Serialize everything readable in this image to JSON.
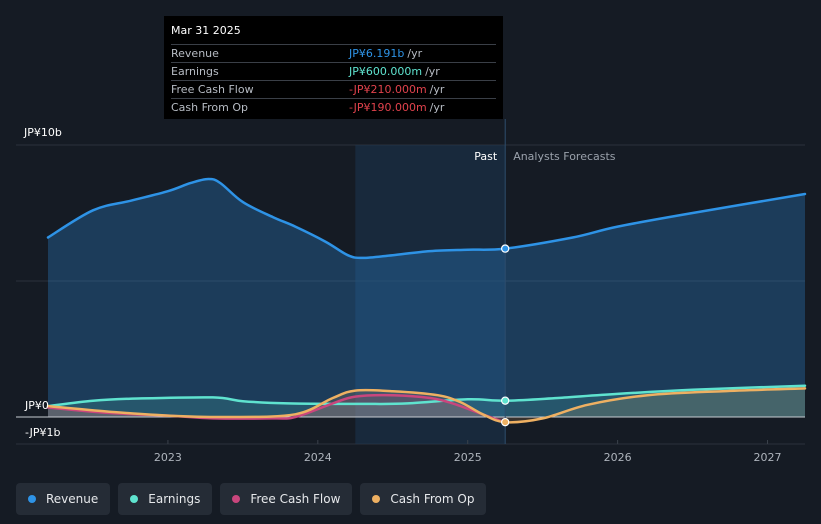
{
  "chart_data": {
    "type": "area",
    "y_axis": {
      "top_label": "JP¥10b",
      "zero_label": "JP¥0",
      "bottom_label": "-JP¥1b",
      "ylim_billion": [
        -1,
        10
      ]
    },
    "x_axis": {
      "ticks": [
        "2023",
        "2024",
        "2025",
        "2026",
        "2027"
      ],
      "xlim_year": [
        2022.2,
        2027.25
      ]
    },
    "regions": {
      "past_label": "Past",
      "forecast_label": "Analysts Forecasts",
      "past_region_start_year": 2024.25,
      "divider_year": 2025.25
    },
    "highlight_year": 2025.25,
    "series": [
      {
        "name": "Revenue",
        "color": "#2e93e6",
        "fill": true,
        "points": [
          [
            2022.2,
            6.6
          ],
          [
            2022.5,
            7.6
          ],
          [
            2022.75,
            7.95
          ],
          [
            2023,
            8.3
          ],
          [
            2023.15,
            8.6
          ],
          [
            2023.27,
            8.75
          ],
          [
            2023.35,
            8.6
          ],
          [
            2023.5,
            7.9
          ],
          [
            2023.7,
            7.35
          ],
          [
            2023.85,
            7.0
          ],
          [
            2024.05,
            6.45
          ],
          [
            2024.2,
            5.95
          ],
          [
            2024.3,
            5.85
          ],
          [
            2024.5,
            5.95
          ],
          [
            2024.75,
            6.1
          ],
          [
            2025,
            6.15
          ],
          [
            2025.25,
            6.191
          ],
          [
            2025.7,
            6.6
          ],
          [
            2026,
            7.0
          ],
          [
            2026.5,
            7.5
          ],
          [
            2027.25,
            8.2
          ]
        ]
      },
      {
        "name": "Earnings",
        "color": "#5fe3cf",
        "fill": false,
        "points": [
          [
            2022.2,
            0.4
          ],
          [
            2022.5,
            0.6
          ],
          [
            2022.8,
            0.68
          ],
          [
            2023.3,
            0.72
          ],
          [
            2023.5,
            0.58
          ],
          [
            2023.8,
            0.5
          ],
          [
            2024.3,
            0.48
          ],
          [
            2024.6,
            0.5
          ],
          [
            2025,
            0.65
          ],
          [
            2025.25,
            0.6
          ],
          [
            2025.6,
            0.7
          ],
          [
            2026,
            0.85
          ],
          [
            2026.5,
            1.0
          ],
          [
            2027.25,
            1.15
          ]
        ]
      },
      {
        "name": "Free Cash Flow",
        "color": "#c9467d",
        "fill": false,
        "points": [
          [
            2022.2,
            0.35
          ],
          [
            2022.6,
            0.15
          ],
          [
            2023,
            0.05
          ],
          [
            2023.3,
            -0.05
          ],
          [
            2023.7,
            -0.05
          ],
          [
            2023.85,
            0.0
          ],
          [
            2024.1,
            0.5
          ],
          [
            2024.25,
            0.75
          ],
          [
            2024.5,
            0.8
          ],
          [
            2024.75,
            0.7
          ],
          [
            2024.9,
            0.5
          ],
          [
            2025.05,
            0.2
          ],
          [
            2025.25,
            -0.21
          ]
        ]
      },
      {
        "name": "Cash From Op",
        "color": "#eeb062",
        "fill": false,
        "points": [
          [
            2022.2,
            0.4
          ],
          [
            2022.6,
            0.2
          ],
          [
            2023,
            0.05
          ],
          [
            2023.4,
            0.0
          ],
          [
            2023.85,
            0.1
          ],
          [
            2024.1,
            0.7
          ],
          [
            2024.25,
            0.97
          ],
          [
            2024.5,
            0.95
          ],
          [
            2024.8,
            0.8
          ],
          [
            2024.95,
            0.55
          ],
          [
            2025.1,
            0.1
          ],
          [
            2025.25,
            -0.19
          ],
          [
            2025.5,
            -0.05
          ],
          [
            2025.8,
            0.45
          ],
          [
            2026.2,
            0.8
          ],
          [
            2026.7,
            0.95
          ],
          [
            2027.25,
            1.05
          ]
        ]
      }
    ]
  },
  "tooltip": {
    "date": "Mar 31 2025",
    "rows": [
      {
        "label": "Revenue",
        "value": "JP¥6.191b",
        "unit": "/yr",
        "color": "#2e93e6"
      },
      {
        "label": "Earnings",
        "value": "JP¥600.000m",
        "unit": "/yr",
        "color": "#5fe3cf"
      },
      {
        "label": "Free Cash Flow",
        "value": "-JP¥210.000m",
        "unit": "/yr",
        "color": "#e0424c"
      },
      {
        "label": "Cash From Op",
        "value": "-JP¥190.000m",
        "unit": "/yr",
        "color": "#e0424c"
      }
    ]
  },
  "legend": [
    {
      "label": "Revenue",
      "color": "#2e93e6"
    },
    {
      "label": "Earnings",
      "color": "#5fe3cf"
    },
    {
      "label": "Free Cash Flow",
      "color": "#c9467d"
    },
    {
      "label": "Cash From Op",
      "color": "#eeb062"
    }
  ]
}
